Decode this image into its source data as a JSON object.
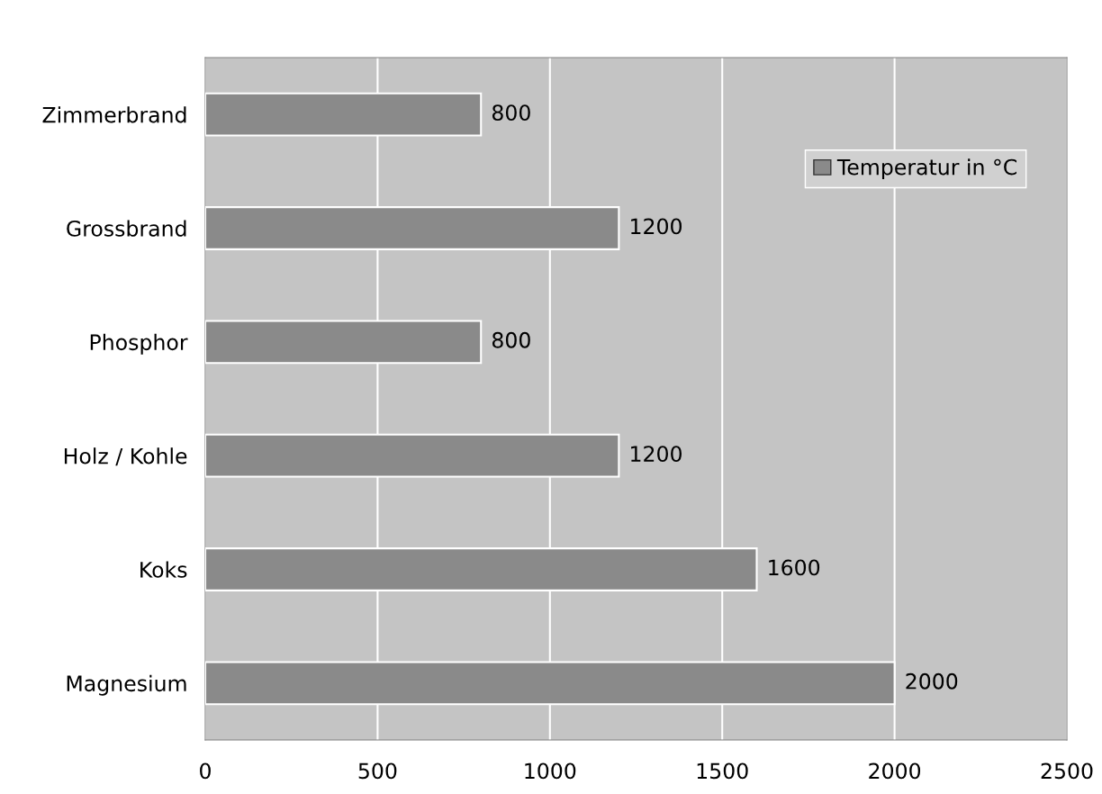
{
  "chart_data": {
    "type": "bar",
    "orientation": "horizontal",
    "categories": [
      "Zimmerbrand",
      "Grossbrand",
      "Phosphor",
      "Holz / Kohle",
      "Koks",
      "Magnesium"
    ],
    "series": [
      {
        "name": "Temperatur in °C",
        "color": "#8a8a8a",
        "values": [
          800,
          1200,
          800,
          1200,
          1600,
          2000
        ]
      }
    ],
    "xlim": [
      0,
      2500
    ],
    "xticks": [
      0,
      500,
      1000,
      1500,
      2000,
      2500
    ],
    "grid": "x",
    "legend": "top right",
    "data_labels": true
  }
}
